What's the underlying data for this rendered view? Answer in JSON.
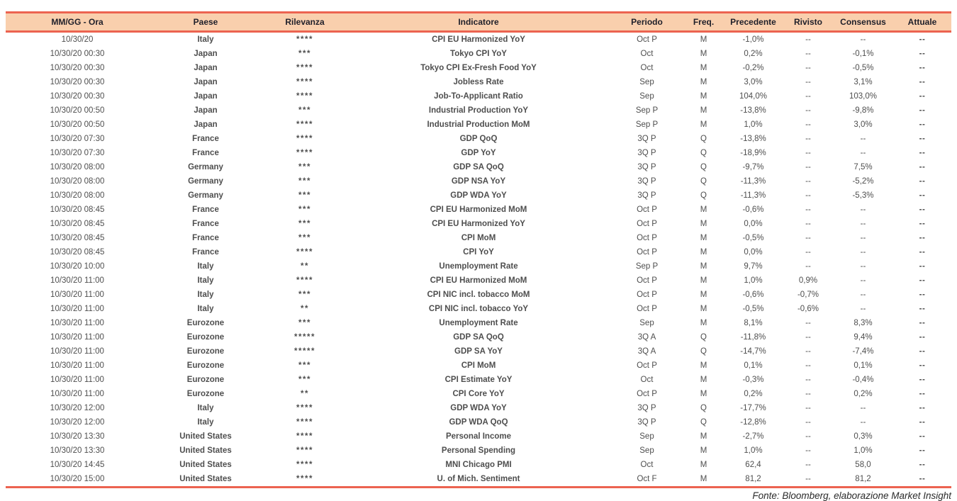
{
  "colors": {
    "accent_line": "#EC6350",
    "header_bg": "#F9CFAD",
    "header_text": "#20202A",
    "body_text": "#4E4E4E",
    "bold_text": "#1E1E1E",
    "stars": "#F2796B"
  },
  "table": {
    "columns": [
      "MM/GG - Ora",
      "Paese",
      "Rilevanza",
      "Indicatore",
      "Periodo",
      "Freq.",
      "Precedente",
      "Rivisto",
      "Consensus",
      "Attuale"
    ],
    "rows": [
      {
        "datetime": "10/30/20",
        "country": "Italy",
        "relevance": "****",
        "indicator": "CPI EU Harmonized YoY",
        "period": "Oct P",
        "freq": "M",
        "previous": "-1,0%",
        "revised": "--",
        "consensus": "--",
        "actual": "--"
      },
      {
        "datetime": "10/30/20 00:30",
        "country": "Japan",
        "relevance": "***",
        "indicator": "Tokyo CPI YoY",
        "period": "Oct",
        "freq": "M",
        "previous": "0,2%",
        "revised": "--",
        "consensus": "-0,1%",
        "actual": "--"
      },
      {
        "datetime": "10/30/20 00:30",
        "country": "Japan",
        "relevance": "****",
        "indicator": "Tokyo CPI Ex-Fresh Food YoY",
        "period": "Oct",
        "freq": "M",
        "previous": "-0,2%",
        "revised": "--",
        "consensus": "-0,5%",
        "actual": "--"
      },
      {
        "datetime": "10/30/20 00:30",
        "country": "Japan",
        "relevance": "****",
        "indicator": "Jobless Rate",
        "period": "Sep",
        "freq": "M",
        "previous": "3,0%",
        "revised": "--",
        "consensus": "3,1%",
        "actual": "--"
      },
      {
        "datetime": "10/30/20 00:30",
        "country": "Japan",
        "relevance": "****",
        "indicator": "Job-To-Applicant Ratio",
        "period": "Sep",
        "freq": "M",
        "previous": "104,0%",
        "revised": "--",
        "consensus": "103,0%",
        "actual": "--"
      },
      {
        "datetime": "10/30/20 00:50",
        "country": "Japan",
        "relevance": "***",
        "indicator": "Industrial Production YoY",
        "period": "Sep P",
        "freq": "M",
        "previous": "-13,8%",
        "revised": "--",
        "consensus": "-9,8%",
        "actual": "--"
      },
      {
        "datetime": "10/30/20 00:50",
        "country": "Japan",
        "relevance": "****",
        "indicator": "Industrial Production MoM",
        "period": "Sep P",
        "freq": "M",
        "previous": "1,0%",
        "revised": "--",
        "consensus": "3,0%",
        "actual": "--"
      },
      {
        "datetime": "10/30/20 07:30",
        "country": "France",
        "relevance": "****",
        "indicator": "GDP QoQ",
        "period": "3Q P",
        "freq": "Q",
        "previous": "-13,8%",
        "revised": "--",
        "consensus": "--",
        "actual": "--"
      },
      {
        "datetime": "10/30/20 07:30",
        "country": "France",
        "relevance": "****",
        "indicator": "GDP YoY",
        "period": "3Q P",
        "freq": "Q",
        "previous": "-18,9%",
        "revised": "--",
        "consensus": "--",
        "actual": "--"
      },
      {
        "datetime": "10/30/20 08:00",
        "country": "Germany",
        "relevance": "***",
        "indicator": "GDP SA QoQ",
        "period": "3Q P",
        "freq": "Q",
        "previous": "-9,7%",
        "revised": "--",
        "consensus": "7,5%",
        "actual": "--"
      },
      {
        "datetime": "10/30/20 08:00",
        "country": "Germany",
        "relevance": "***",
        "indicator": "GDP NSA YoY",
        "period": "3Q P",
        "freq": "Q",
        "previous": "-11,3%",
        "revised": "--",
        "consensus": "-5,2%",
        "actual": "--"
      },
      {
        "datetime": "10/30/20 08:00",
        "country": "Germany",
        "relevance": "***",
        "indicator": "GDP WDA YoY",
        "period": "3Q P",
        "freq": "Q",
        "previous": "-11,3%",
        "revised": "--",
        "consensus": "-5,3%",
        "actual": "--"
      },
      {
        "datetime": "10/30/20 08:45",
        "country": "France",
        "relevance": "***",
        "indicator": "CPI EU Harmonized MoM",
        "period": "Oct P",
        "freq": "M",
        "previous": "-0,6%",
        "revised": "--",
        "consensus": "--",
        "actual": "--"
      },
      {
        "datetime": "10/30/20 08:45",
        "country": "France",
        "relevance": "***",
        "indicator": "CPI EU Harmonized YoY",
        "period": "Oct P",
        "freq": "M",
        "previous": "0,0%",
        "revised": "--",
        "consensus": "--",
        "actual": "--"
      },
      {
        "datetime": "10/30/20 08:45",
        "country": "France",
        "relevance": "***",
        "indicator": "CPI MoM",
        "period": "Oct P",
        "freq": "M",
        "previous": "-0,5%",
        "revised": "--",
        "consensus": "--",
        "actual": "--"
      },
      {
        "datetime": "10/30/20 08:45",
        "country": "France",
        "relevance": "****",
        "indicator": "CPI YoY",
        "period": "Oct P",
        "freq": "M",
        "previous": "0,0%",
        "revised": "--",
        "consensus": "--",
        "actual": "--"
      },
      {
        "datetime": "10/30/20 10:00",
        "country": "Italy",
        "relevance": "**",
        "indicator": "Unemployment Rate",
        "period": "Sep P",
        "freq": "M",
        "previous": "9,7%",
        "revised": "--",
        "consensus": "--",
        "actual": "--"
      },
      {
        "datetime": "10/30/20 11:00",
        "country": "Italy",
        "relevance": "****",
        "indicator": "CPI EU Harmonized MoM",
        "period": "Oct P",
        "freq": "M",
        "previous": "1,0%",
        "revised": "0,9%",
        "consensus": "--",
        "actual": "--"
      },
      {
        "datetime": "10/30/20 11:00",
        "country": "Italy",
        "relevance": "***",
        "indicator": "CPI NIC incl. tobacco MoM",
        "period": "Oct P",
        "freq": "M",
        "previous": "-0,6%",
        "revised": "-0,7%",
        "consensus": "--",
        "actual": "--"
      },
      {
        "datetime": "10/30/20 11:00",
        "country": "Italy",
        "relevance": "**",
        "indicator": "CPI NIC incl. tobacco YoY",
        "period": "Oct P",
        "freq": "M",
        "previous": "-0,5%",
        "revised": "-0,6%",
        "consensus": "--",
        "actual": "--"
      },
      {
        "datetime": "10/30/20 11:00",
        "country": "Eurozone",
        "relevance": "***",
        "indicator": "Unemployment Rate",
        "period": "Sep",
        "freq": "M",
        "previous": "8,1%",
        "revised": "--",
        "consensus": "8,3%",
        "actual": "--"
      },
      {
        "datetime": "10/30/20 11:00",
        "country": "Eurozone",
        "relevance": "*****",
        "indicator": "GDP SA QoQ",
        "period": "3Q A",
        "freq": "Q",
        "previous": "-11,8%",
        "revised": "--",
        "consensus": "9,4%",
        "actual": "--"
      },
      {
        "datetime": "10/30/20 11:00",
        "country": "Eurozone",
        "relevance": "*****",
        "indicator": "GDP SA YoY",
        "period": "3Q A",
        "freq": "Q",
        "previous": "-14,7%",
        "revised": "--",
        "consensus": "-7,4%",
        "actual": "--"
      },
      {
        "datetime": "10/30/20 11:00",
        "country": "Eurozone",
        "relevance": "***",
        "indicator": "CPI MoM",
        "period": "Oct P",
        "freq": "M",
        "previous": "0,1%",
        "revised": "--",
        "consensus": "0,1%",
        "actual": "--"
      },
      {
        "datetime": "10/30/20 11:00",
        "country": "Eurozone",
        "relevance": "***",
        "indicator": "CPI Estimate YoY",
        "period": "Oct",
        "freq": "M",
        "previous": "-0,3%",
        "revised": "--",
        "consensus": "-0,4%",
        "actual": "--"
      },
      {
        "datetime": "10/30/20 11:00",
        "country": "Eurozone",
        "relevance": "**",
        "indicator": "CPI Core YoY",
        "period": "Oct P",
        "freq": "M",
        "previous": "0,2%",
        "revised": "--",
        "consensus": "0,2%",
        "actual": "--"
      },
      {
        "datetime": "10/30/20 12:00",
        "country": "Italy",
        "relevance": "****",
        "indicator": "GDP WDA YoY",
        "period": "3Q P",
        "freq": "Q",
        "previous": "-17,7%",
        "revised": "--",
        "consensus": "--",
        "actual": "--"
      },
      {
        "datetime": "10/30/20 12:00",
        "country": "Italy",
        "relevance": "****",
        "indicator": "GDP WDA QoQ",
        "period": "3Q P",
        "freq": "Q",
        "previous": "-12,8%",
        "revised": "--",
        "consensus": "--",
        "actual": "--"
      },
      {
        "datetime": "10/30/20 13:30",
        "country": "United States",
        "relevance": "****",
        "indicator": "Personal Income",
        "period": "Sep",
        "freq": "M",
        "previous": "-2,7%",
        "revised": "--",
        "consensus": "0,3%",
        "actual": "--"
      },
      {
        "datetime": "10/30/20 13:30",
        "country": "United States",
        "relevance": "****",
        "indicator": "Personal Spending",
        "period": "Sep",
        "freq": "M",
        "previous": "1,0%",
        "revised": "--",
        "consensus": "1,0%",
        "actual": "--"
      },
      {
        "datetime": "10/30/20 14:45",
        "country": "United States",
        "relevance": "****",
        "indicator": "MNI Chicago PMI",
        "period": "Oct",
        "freq": "M",
        "previous": "62,4",
        "revised": "--",
        "consensus": "58,0",
        "actual": "--"
      },
      {
        "datetime": "10/30/20 15:00",
        "country": "United States",
        "relevance": "****",
        "indicator": "U. of Mich. Sentiment",
        "period": "Oct F",
        "freq": "M",
        "previous": "81,2",
        "revised": "--",
        "consensus": "81,2",
        "actual": "--"
      }
    ]
  },
  "footer": {
    "source": "Fonte: Bloomberg, elaborazione Market Insight"
  }
}
